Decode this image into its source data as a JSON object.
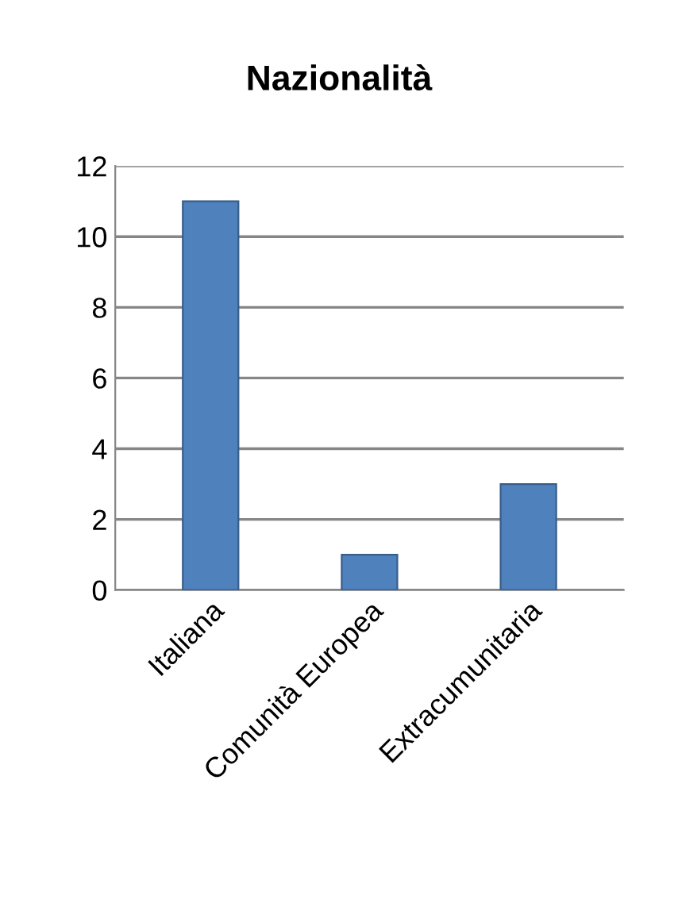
{
  "chart_data": {
    "type": "bar",
    "title": "Nazionalità",
    "categories": [
      "Italiana",
      "Comunità Europea",
      "Extracumunitaria"
    ],
    "values": [
      11,
      1,
      3
    ],
    "color": "#4f81bd",
    "ylim": [
      0,
      12
    ],
    "yticks": [
      0,
      2,
      4,
      6,
      8,
      10,
      12
    ],
    "grid": "y"
  }
}
